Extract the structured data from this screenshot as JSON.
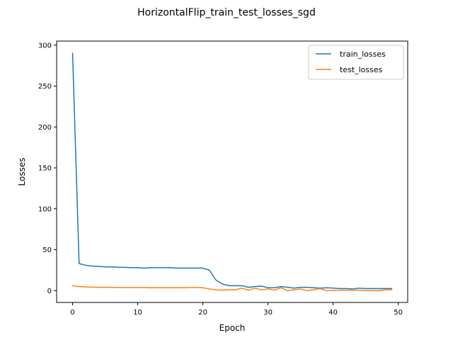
{
  "chart_data": {
    "type": "line",
    "title": "HorizontalFlip_train_test_losses_sgd",
    "xlabel": "Epoch",
    "ylabel": "Losses",
    "xlim": [
      -2.45,
      51.45
    ],
    "ylim": [
      -14.5,
      305
    ],
    "xticks": [
      0,
      10,
      20,
      30,
      40,
      50
    ],
    "yticks": [
      0,
      50,
      100,
      150,
      200,
      250,
      300
    ],
    "grid": false,
    "legend_position": "top-right",
    "x": [
      0,
      1,
      2,
      3,
      4,
      5,
      6,
      7,
      8,
      9,
      10,
      11,
      12,
      13,
      14,
      15,
      16,
      17,
      18,
      19,
      20,
      21,
      22,
      23,
      24,
      25,
      26,
      27,
      28,
      29,
      30,
      31,
      32,
      33,
      34,
      35,
      36,
      37,
      38,
      39,
      40,
      41,
      42,
      43,
      44,
      45,
      46,
      47,
      48,
      49
    ],
    "series": [
      {
        "name": "train_losses",
        "color": "#1f77b4",
        "values": [
          290,
          33,
          31,
          30,
          29.5,
          29,
          29,
          28.5,
          28.5,
          28,
          28,
          27.5,
          28,
          28,
          28,
          28,
          27.5,
          27.5,
          27.5,
          27.5,
          27.5,
          25,
          13,
          8,
          6,
          6,
          6,
          4,
          5,
          5.5,
          3.5,
          3.5,
          5,
          4,
          3,
          4,
          4,
          3.5,
          3,
          3.5,
          3,
          2.5,
          2.5,
          2,
          3,
          2.5,
          2.5,
          2.5,
          2.5,
          2.5
        ]
      },
      {
        "name": "test_losses",
        "color": "#ff7f0e",
        "values": [
          6,
          5,
          4.5,
          4.2,
          4,
          4,
          4,
          3.8,
          3.8,
          3.8,
          3.8,
          3.8,
          3.5,
          3.5,
          3.5,
          3.5,
          3.5,
          3.5,
          3.8,
          3.8,
          3.5,
          2,
          1,
          0.5,
          1,
          1,
          3,
          0.5,
          3,
          1,
          2,
          0.5,
          3.5,
          0,
          1,
          2,
          0,
          1,
          2.5,
          0,
          0,
          0.5,
          0.5,
          0.5,
          0.5,
          0,
          0,
          0,
          1,
          1
        ]
      }
    ]
  }
}
